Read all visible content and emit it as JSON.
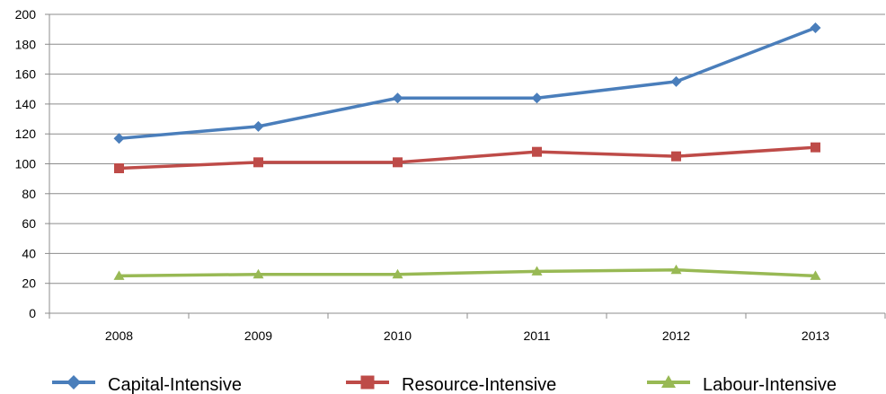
{
  "chart_data": {
    "type": "line",
    "title": "",
    "xlabel": "",
    "ylabel": "",
    "categories": [
      "2008",
      "2009",
      "2010",
      "2011",
      "2012",
      "2013"
    ],
    "ylim": [
      0,
      200
    ],
    "yticks": [
      0,
      20,
      40,
      60,
      80,
      100,
      120,
      140,
      160,
      180,
      200
    ],
    "grid": "horizontal",
    "legend": "bottom",
    "series": [
      {
        "name": "Capital-Intensive",
        "color": "#4a7ebb",
        "marker": "diamond",
        "values": [
          117,
          125,
          144,
          144,
          155,
          191
        ]
      },
      {
        "name": "Resource-Intensive",
        "color": "#be4b48",
        "marker": "square",
        "values": [
          97,
          101,
          101,
          108,
          105,
          111
        ]
      },
      {
        "name": "Labour-Intensive",
        "color": "#98b954",
        "marker": "triangle",
        "values": [
          25,
          26,
          26,
          28,
          29,
          25
        ]
      }
    ]
  }
}
